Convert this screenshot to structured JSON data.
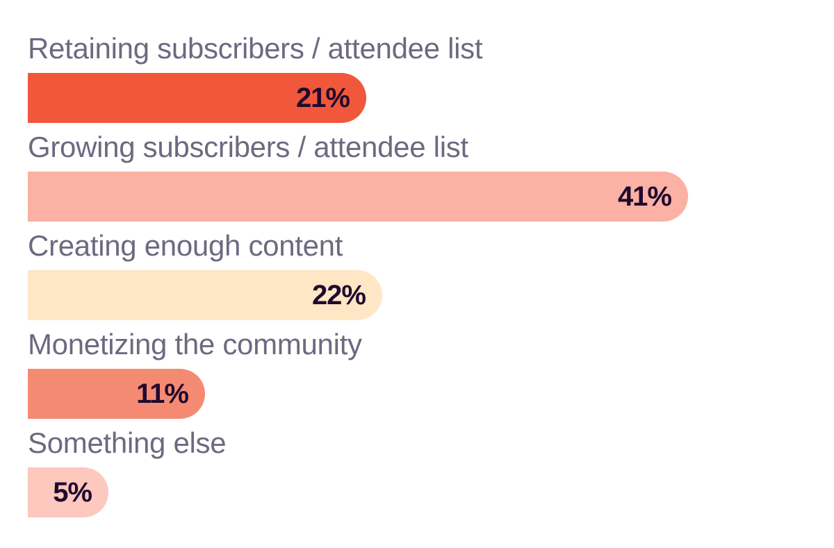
{
  "chart_data": {
    "type": "bar",
    "orientation": "horizontal",
    "title": "",
    "xlabel": "",
    "ylabel": "",
    "xlim": [
      0,
      48
    ],
    "grid": false,
    "categories": [
      "Retaining subscribers / attendee list",
      "Growing subscribers / attendee list",
      "Creating enough content",
      "Monetizing the community",
      "Something else"
    ],
    "values": [
      21,
      41,
      22,
      11,
      5
    ],
    "value_labels": [
      "21%",
      "41%",
      "22%",
      "11%",
      "5%"
    ],
    "colors": [
      "#f0573b",
      "#fbb1a3",
      "#ffe6c5",
      "#f58a72",
      "#fdc8bd"
    ]
  }
}
